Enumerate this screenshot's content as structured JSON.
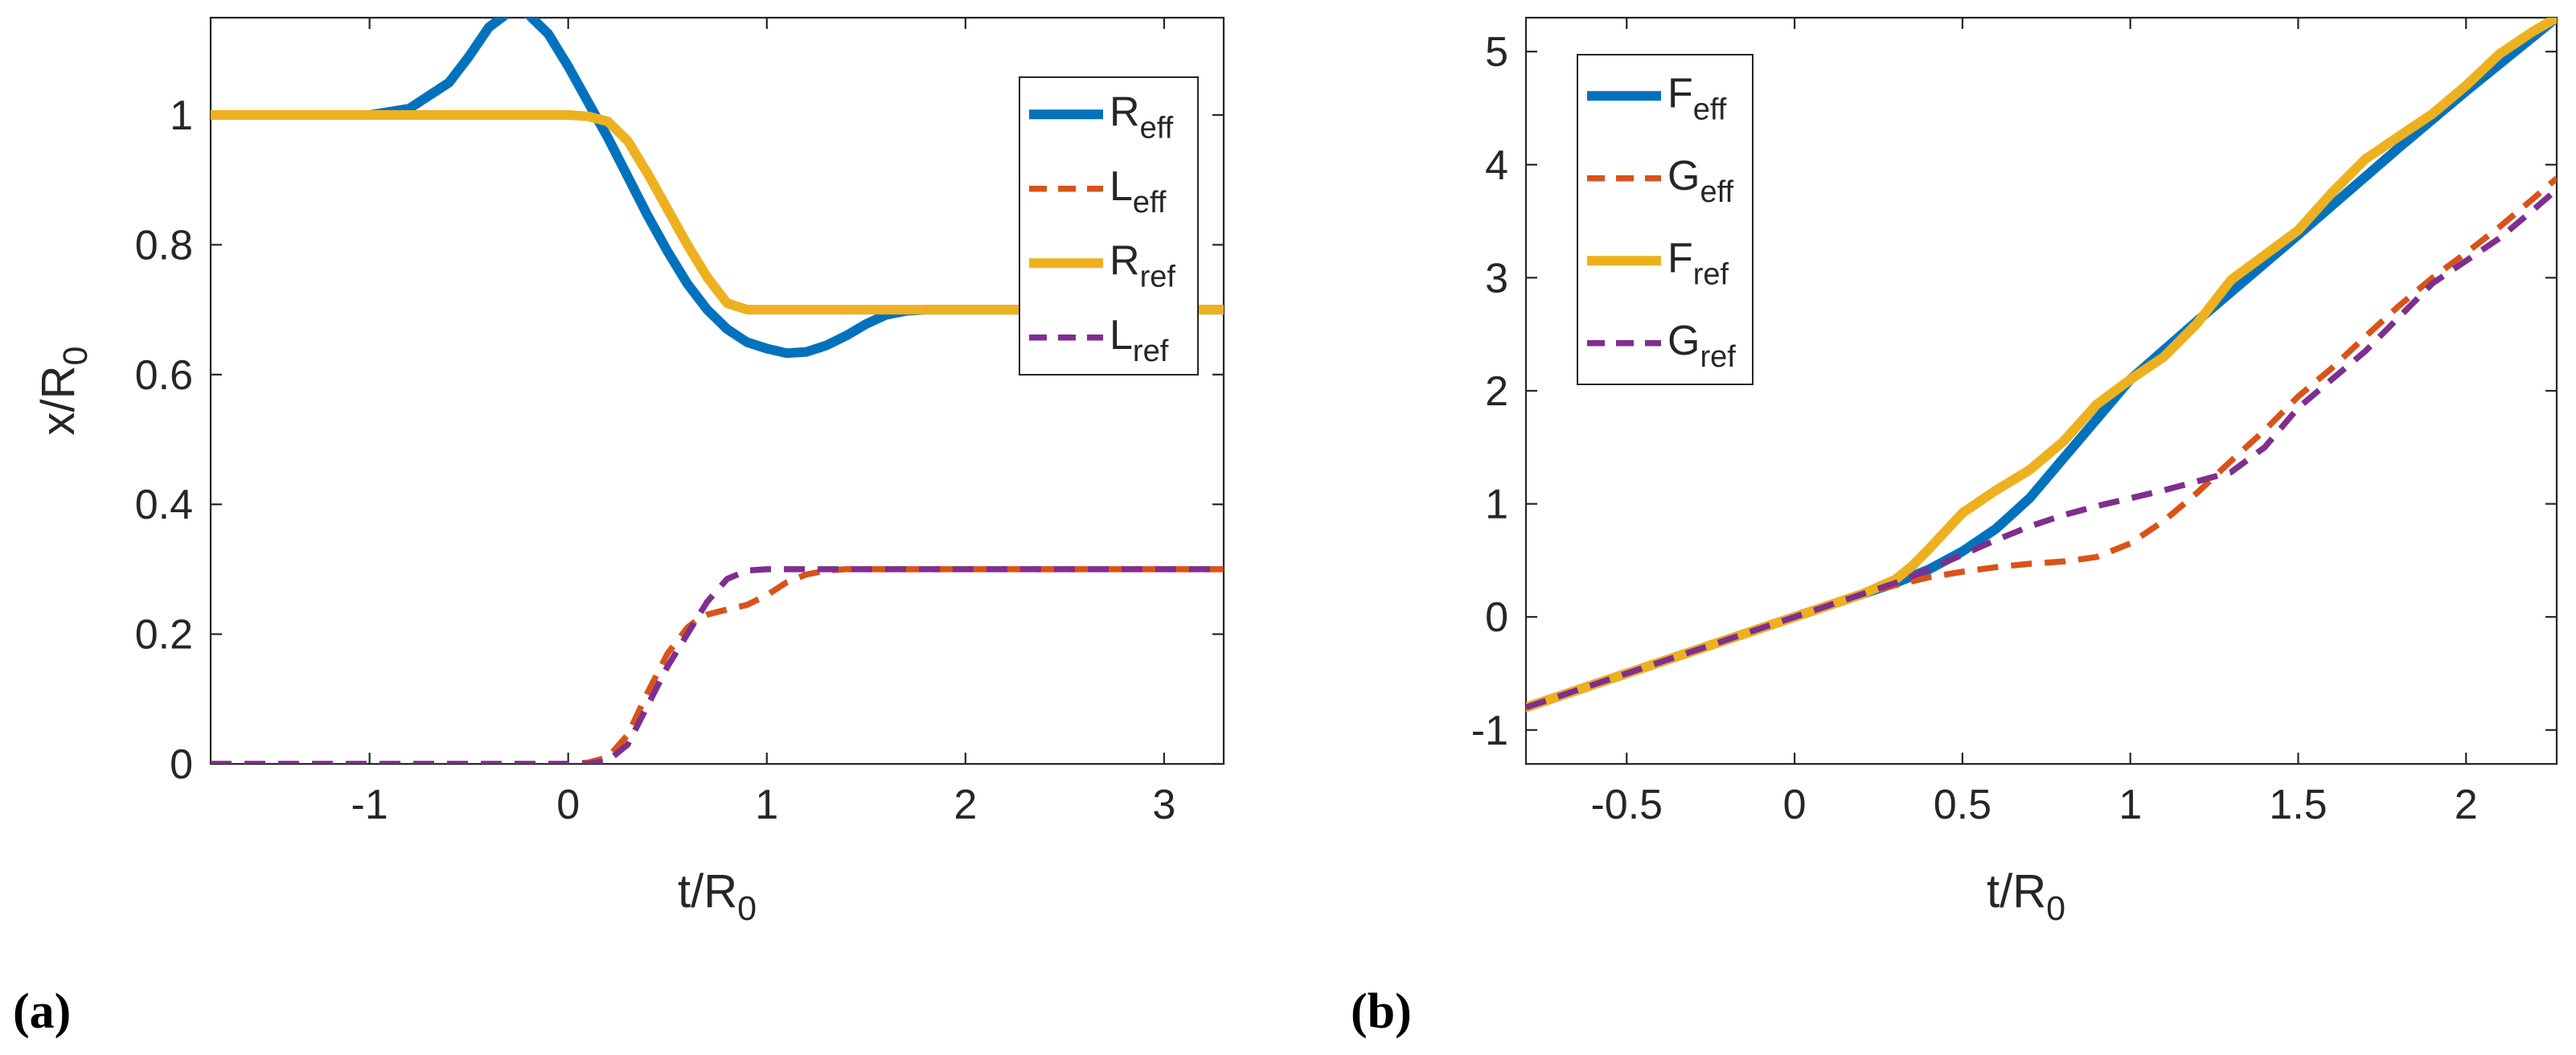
{
  "colors": {
    "blue": "#0072BD",
    "orange": "#D95319",
    "yellow": "#EDB120",
    "purple": "#7E2F8E",
    "axis": "#262626"
  },
  "chart_data": [
    {
      "panel_label": "(a)",
      "type": "line",
      "xlabel": {
        "main": "t/R",
        "sub": "0"
      },
      "ylabel": {
        "main": "x/R",
        "sub": "0"
      },
      "xlim": [
        -1.8,
        3.3
      ],
      "ylim": [
        0,
        1.15
      ],
      "xticks": [
        -1,
        0,
        1,
        2,
        3
      ],
      "xtick_labels": [
        "-1",
        "0",
        "1",
        "2",
        "3"
      ],
      "yticks": [
        0,
        0.2,
        0.4,
        0.6,
        0.8,
        1
      ],
      "ytick_labels": [
        "0",
        "0.2",
        "0.4",
        "0.6",
        "0.8",
        "1"
      ],
      "grid": false,
      "legend_location": "top-right",
      "series": [
        {
          "name": "R",
          "sub": "eff",
          "color": "#0072BD",
          "style": "solid",
          "x": [
            -1.8,
            -1.0,
            -0.8,
            -0.6,
            -0.5,
            -0.4,
            -0.3,
            -0.25,
            -0.2,
            -0.1,
            0.0,
            0.1,
            0.2,
            0.3,
            0.4,
            0.5,
            0.6,
            0.7,
            0.8,
            0.9,
            1.0,
            1.1,
            1.2,
            1.3,
            1.4,
            1.5,
            1.6,
            1.7,
            1.8,
            2.0,
            2.5,
            3.3
          ],
          "y": [
            1.0,
            1.0,
            1.01,
            1.05,
            1.09,
            1.135,
            1.158,
            1.16,
            1.155,
            1.125,
            1.075,
            1.02,
            0.965,
            0.905,
            0.845,
            0.79,
            0.74,
            0.7,
            0.67,
            0.65,
            0.64,
            0.633,
            0.635,
            0.645,
            0.66,
            0.678,
            0.692,
            0.698,
            0.7,
            0.7,
            0.7,
            0.7
          ]
        },
        {
          "name": "L",
          "sub": "eff",
          "color": "#D95319",
          "style": "dashed",
          "x": [
            -1.8,
            0.0,
            0.1,
            0.2,
            0.3,
            0.4,
            0.5,
            0.6,
            0.65,
            0.7,
            0.8,
            0.9,
            1.0,
            1.1,
            1.2,
            1.3,
            1.4,
            3.3
          ],
          "y": [
            0.0,
            0.0,
            0.002,
            0.01,
            0.045,
            0.11,
            0.17,
            0.21,
            0.222,
            0.23,
            0.238,
            0.245,
            0.26,
            0.28,
            0.292,
            0.298,
            0.3,
            0.3
          ]
        },
        {
          "name": "R",
          "sub": "ref",
          "color": "#EDB120",
          "style": "solid",
          "x": [
            -1.8,
            0.0,
            0.1,
            0.2,
            0.3,
            0.4,
            0.5,
            0.6,
            0.7,
            0.8,
            0.9,
            1.0,
            1.1,
            1.3,
            1.5,
            3.3
          ],
          "y": [
            1.0,
            1.0,
            0.998,
            0.99,
            0.96,
            0.91,
            0.855,
            0.8,
            0.75,
            0.71,
            0.7,
            0.7,
            0.7,
            0.7,
            0.7,
            0.7
          ]
        },
        {
          "name": "L",
          "sub": "ref",
          "color": "#7E2F8E",
          "style": "dashed",
          "x": [
            -1.8,
            0.1,
            0.2,
            0.3,
            0.4,
            0.5,
            0.6,
            0.7,
            0.8,
            0.9,
            1.0,
            1.1,
            1.3,
            3.3
          ],
          "y": [
            0.0,
            0.0,
            0.005,
            0.03,
            0.09,
            0.15,
            0.2,
            0.25,
            0.285,
            0.298,
            0.3,
            0.3,
            0.3,
            0.3
          ]
        }
      ]
    },
    {
      "panel_label": "(b)",
      "type": "line",
      "xlabel": {
        "main": "t/R",
        "sub": "0"
      },
      "ylabel": {
        "main": "",
        "sub": ""
      },
      "xlim": [
        -0.8,
        2.27
      ],
      "ylim": [
        -1.3,
        5.3
      ],
      "xticks": [
        -0.5,
        0,
        0.5,
        1,
        1.5,
        2
      ],
      "xtick_labels": [
        "-0.5",
        "0",
        "0.5",
        "1",
        "1.5",
        "2"
      ],
      "yticks": [
        -1,
        0,
        1,
        2,
        3,
        4,
        5
      ],
      "ytick_labels": [
        "-1",
        "0",
        "1",
        "2",
        "3",
        "4",
        "5"
      ],
      "grid": false,
      "legend_location": "top-left",
      "series": [
        {
          "name": "F",
          "sub": "eff",
          "color": "#0072BD",
          "style": "solid",
          "x": [
            -0.8,
            0.0,
            0.2,
            0.3,
            0.4,
            0.5,
            0.6,
            0.7,
            0.8,
            0.9,
            1.0,
            1.2,
            1.5,
            1.8,
            2.0,
            2.27
          ],
          "y": [
            -0.8,
            0.0,
            0.2,
            0.3,
            0.42,
            0.58,
            0.78,
            1.05,
            1.4,
            1.75,
            2.1,
            2.62,
            3.38,
            4.15,
            4.65,
            5.3
          ]
        },
        {
          "name": "G",
          "sub": "eff",
          "color": "#D95319",
          "style": "dashed",
          "x": [
            -0.8,
            0.0,
            0.2,
            0.3,
            0.4,
            0.5,
            0.6,
            0.7,
            0.8,
            0.9,
            1.0,
            1.1,
            1.2,
            1.3,
            1.4,
            1.5,
            1.6,
            1.7,
            1.8,
            1.9,
            2.0,
            2.1,
            2.2,
            2.27
          ],
          "y": [
            -0.8,
            0.0,
            0.2,
            0.28,
            0.35,
            0.4,
            0.44,
            0.47,
            0.49,
            0.53,
            0.65,
            0.85,
            1.1,
            1.38,
            1.65,
            1.95,
            2.2,
            2.48,
            2.75,
            3.0,
            3.22,
            3.45,
            3.7,
            3.88
          ]
        },
        {
          "name": "F",
          "sub": "ref",
          "color": "#EDB120",
          "style": "solid",
          "x": [
            -0.8,
            0.0,
            0.2,
            0.3,
            0.35,
            0.4,
            0.5,
            0.6,
            0.7,
            0.8,
            0.9,
            1.0,
            1.1,
            1.2,
            1.3,
            1.4,
            1.5,
            1.6,
            1.7,
            1.8,
            1.9,
            2.0,
            2.1,
            2.2,
            2.27
          ],
          "y": [
            -0.8,
            0.0,
            0.2,
            0.33,
            0.45,
            0.6,
            0.92,
            1.12,
            1.3,
            1.55,
            1.88,
            2.1,
            2.3,
            2.6,
            2.98,
            3.2,
            3.42,
            3.75,
            4.05,
            4.25,
            4.45,
            4.7,
            4.98,
            5.18,
            5.3
          ]
        },
        {
          "name": "G",
          "sub": "ref",
          "color": "#7E2F8E",
          "style": "dashed",
          "x": [
            -0.8,
            0.0,
            0.2,
            0.3,
            0.4,
            0.5,
            0.6,
            0.7,
            0.8,
            0.9,
            1.0,
            1.1,
            1.2,
            1.3,
            1.4,
            1.5,
            1.6,
            1.7,
            1.8,
            1.9,
            2.0,
            2.1,
            2.2,
            2.27
          ],
          "y": [
            -0.8,
            0.0,
            0.2,
            0.3,
            0.42,
            0.55,
            0.68,
            0.8,
            0.9,
            0.98,
            1.05,
            1.12,
            1.2,
            1.28,
            1.5,
            1.85,
            2.1,
            2.35,
            2.65,
            2.95,
            3.15,
            3.35,
            3.6,
            3.78
          ]
        }
      ]
    }
  ]
}
